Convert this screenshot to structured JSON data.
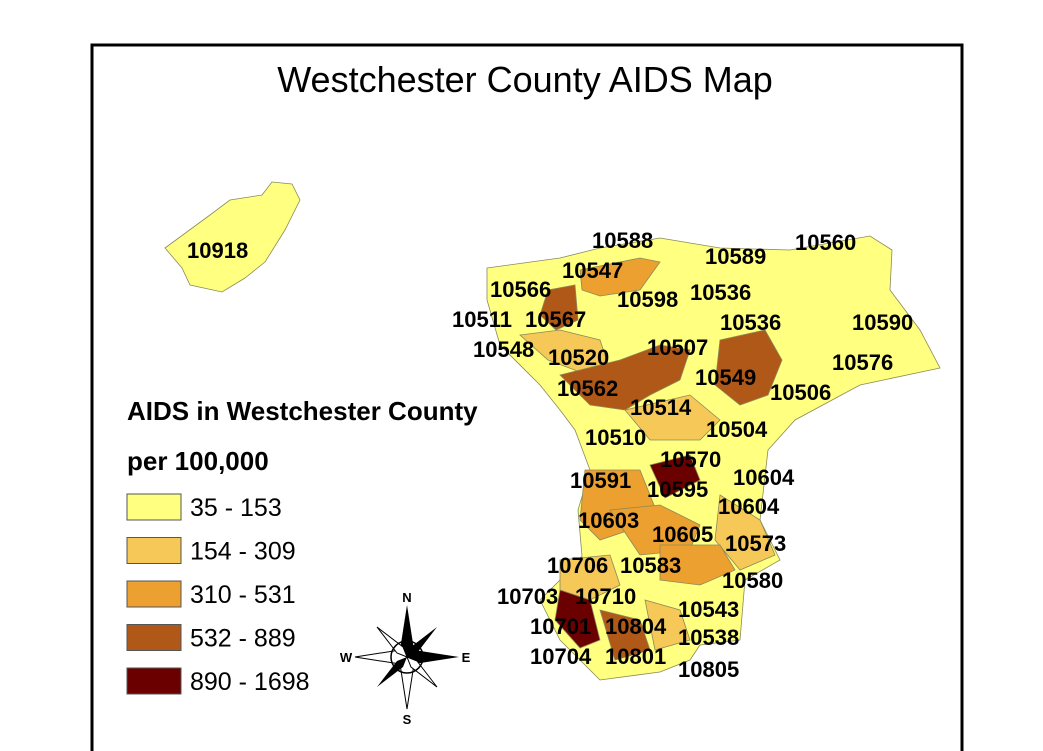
{
  "title": "Westchester County AIDS Map",
  "legend": {
    "title": [
      "AIDS in Westchester County",
      "per 100,000"
    ],
    "classes": [
      {
        "label": "35 - 153",
        "color": "#ffff80"
      },
      {
        "label": "154 - 309",
        "color": "#f5c858"
      },
      {
        "label": "310 - 531",
        "color": "#eba030"
      },
      {
        "label": "532 - 889",
        "color": "#b05818"
      },
      {
        "label": "890 - 1698",
        "color": "#6b0000"
      }
    ]
  },
  "zip_labels": [
    "10918",
    "10588",
    "10589",
    "10560",
    "10547",
    "10566",
    "10598",
    "10536",
    "10511",
    "10567",
    "10536",
    "10590",
    "10548",
    "10520",
    "10507",
    "10576",
    "10562",
    "10549",
    "10506",
    "10514",
    "10510",
    "10504",
    "10570",
    "10604",
    "10591",
    "10595",
    "10604",
    "10603",
    "10605",
    "10573",
    "10706",
    "10583",
    "10580",
    "10703",
    "10710",
    "10543",
    "10701",
    "10804",
    "10538",
    "10704",
    "10801",
    "10805"
  ],
  "compass": {
    "north": "N",
    "south": "S",
    "west": "W",
    "east": "E"
  }
}
